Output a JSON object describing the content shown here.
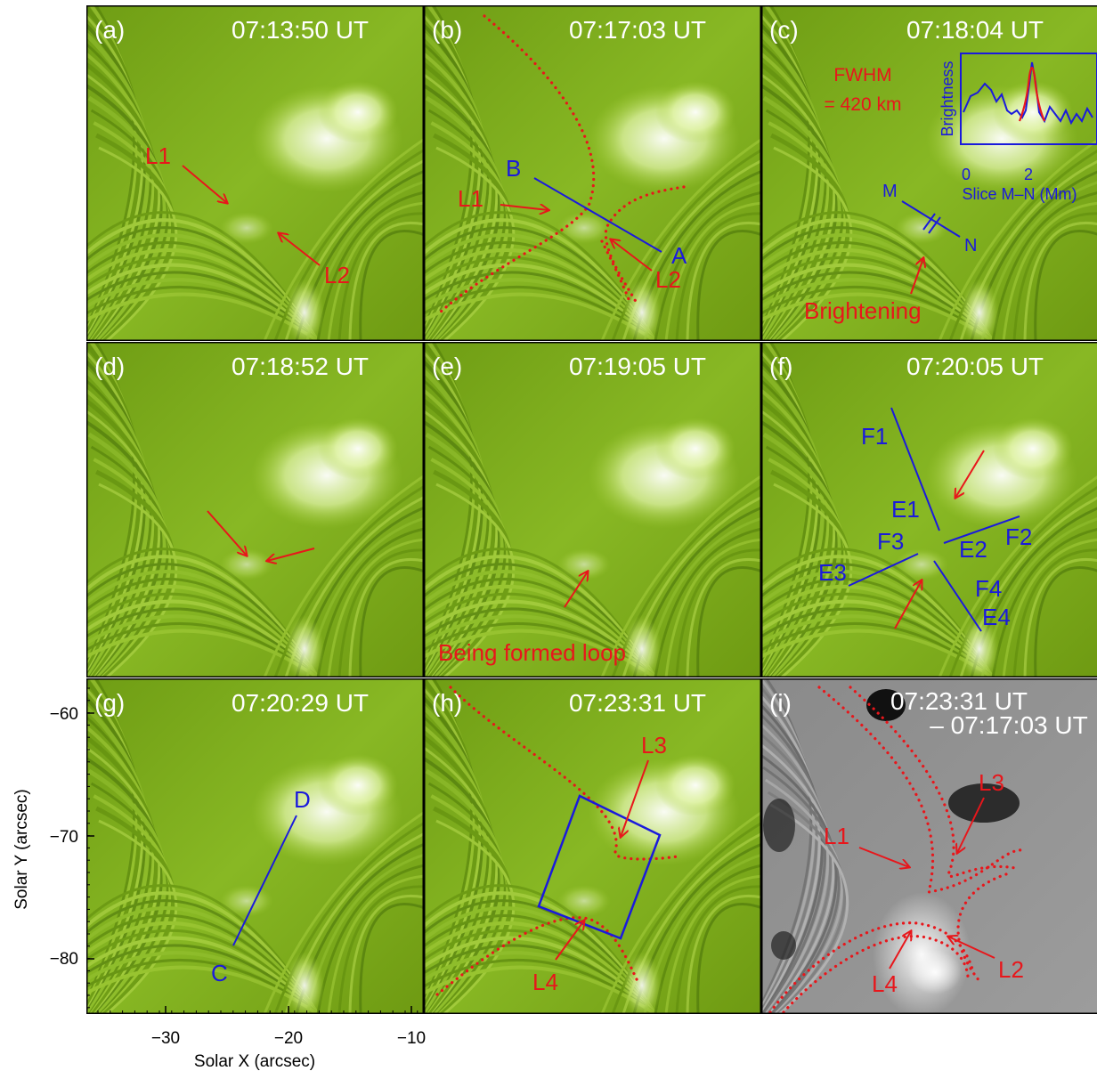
{
  "figure": {
    "panels": [
      {
        "id": "a",
        "label": "(a)",
        "time": "07:13:50 UT",
        "type": "green"
      },
      {
        "id": "b",
        "label": "(b)",
        "time": "07:17:03 UT",
        "type": "green"
      },
      {
        "id": "c",
        "label": "(c)",
        "time": "07:18:04 UT",
        "type": "green"
      },
      {
        "id": "d",
        "label": "(d)",
        "time": "07:18:52 UT",
        "type": "green"
      },
      {
        "id": "e",
        "label": "(e)",
        "time": "07:19:05 UT",
        "type": "green"
      },
      {
        "id": "f",
        "label": "(f)",
        "time": "07:20:05 UT",
        "type": "green"
      },
      {
        "id": "g",
        "label": "(g)",
        "time": "07:20:29 UT",
        "type": "green"
      },
      {
        "id": "h",
        "label": "(h)",
        "time": "07:23:31 UT",
        "type": "green"
      },
      {
        "id": "i",
        "label": "(i)",
        "time": "07:23:31 UT",
        "time2": "– 07:17:03 UT",
        "type": "difference"
      }
    ],
    "annotations": {
      "a": {
        "l1": "L1",
        "l2": "L2"
      },
      "b": {
        "a": "A",
        "b": "B",
        "l1": "L1",
        "l2": "L2"
      },
      "c": {
        "fwhm1": "FWHM",
        "fwhm2": "= 420 km",
        "m": "M",
        "n": "N",
        "brightening": "Brightening",
        "inset_ylabel": "Brightness",
        "inset_xlabel": "Slice M–N (Mm)",
        "inset_ticks": [
          "0",
          "2"
        ]
      },
      "e": {
        "loop": "Being formed loop"
      },
      "f": {
        "f1": "F1",
        "f2": "F2",
        "f3": "F3",
        "f4": "F4",
        "e1": "E1",
        "e2": "E2",
        "e3": "E3",
        "e4": "E4"
      },
      "g": {
        "c": "C",
        "d": "D"
      },
      "h": {
        "l3": "L3",
        "l4": "L4"
      },
      "i": {
        "l1": "L1",
        "l2": "L2",
        "l3": "L3",
        "l4": "L4"
      }
    },
    "axes": {
      "xlabel": "Solar X (arcsec)",
      "ylabel": "Solar Y (arcsec)",
      "xticks": [
        "−30",
        "−20",
        "−10"
      ],
      "yticks": [
        "−60",
        "−70",
        "−80"
      ]
    },
    "colors": {
      "annotation_red": "#e8161b",
      "annotation_blue": "#1a1adc",
      "background_green": "#7fae1c",
      "bright_region": "#f4ffe0"
    }
  }
}
